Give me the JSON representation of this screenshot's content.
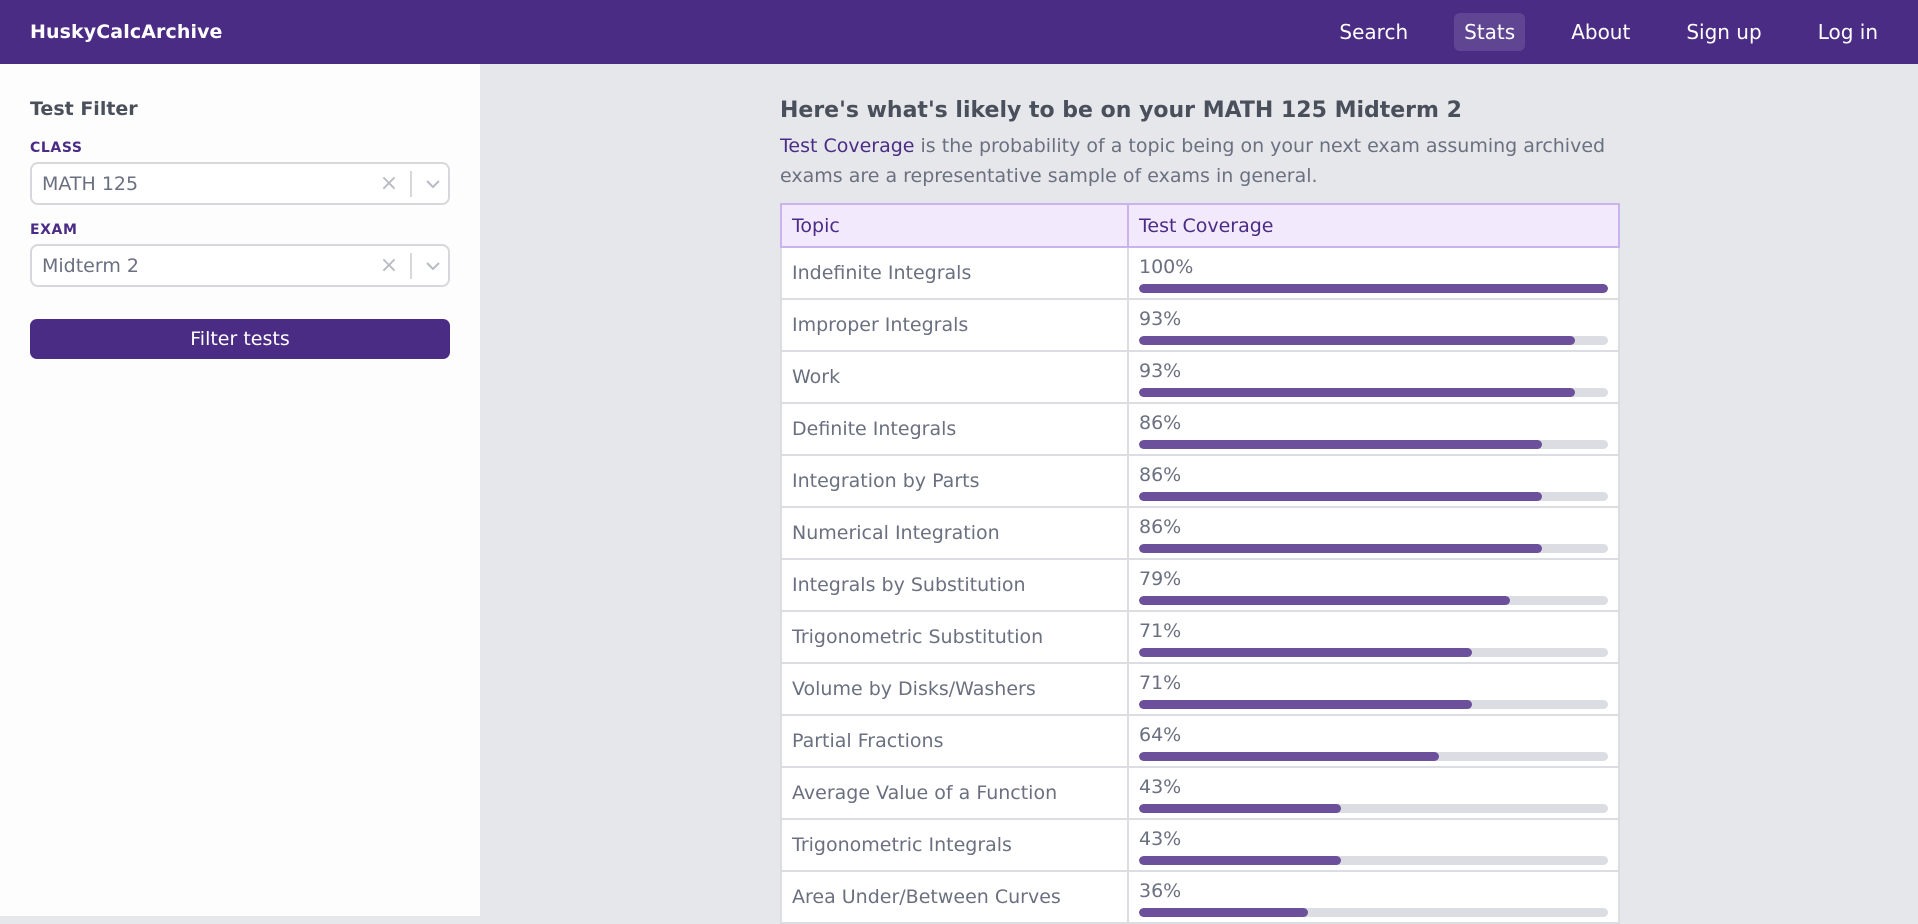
{
  "nav": {
    "brand": "HuskyCalcArchive",
    "links": [
      "Search",
      "Stats",
      "About",
      "Sign up",
      "Log in"
    ],
    "active": "Stats"
  },
  "sidebar": {
    "title": "Test Filter",
    "class_label": "CLASS",
    "class_value": "MATH 125",
    "exam_label": "EXAM",
    "exam_value": "Midterm 2",
    "clear_glyph": "×",
    "button_label": "Filter tests"
  },
  "main": {
    "heading": "Here's what's likely to be on your MATH 125 Midterm 2",
    "desc_highlight": "Test Coverage",
    "desc_rest": " is the probability of a topic being on your next exam assuming archived exams are a representative sample of exams in general.",
    "columns": [
      "Topic",
      "Test Coverage"
    ],
    "rows": [
      {
        "topic": "Indefinite Integrals",
        "pct_text": "100%",
        "pct": 100
      },
      {
        "topic": "Improper Integrals",
        "pct_text": "93%",
        "pct": 93
      },
      {
        "topic": "Work",
        "pct_text": "93%",
        "pct": 93
      },
      {
        "topic": "Definite Integrals",
        "pct_text": "86%",
        "pct": 86
      },
      {
        "topic": "Integration by Parts",
        "pct_text": "86%",
        "pct": 86
      },
      {
        "topic": "Numerical Integration",
        "pct_text": "86%",
        "pct": 86
      },
      {
        "topic": "Integrals by Substitution",
        "pct_text": "79%",
        "pct": 79
      },
      {
        "topic": "Trigonometric Substitution",
        "pct_text": "71%",
        "pct": 71
      },
      {
        "topic": "Volume by Disks/Washers",
        "pct_text": "71%",
        "pct": 71
      },
      {
        "topic": "Partial Fractions",
        "pct_text": "64%",
        "pct": 64
      },
      {
        "topic": "Average Value of a Function",
        "pct_text": "43%",
        "pct": 43
      },
      {
        "topic": "Trigonometric Integrals",
        "pct_text": "43%",
        "pct": 43
      },
      {
        "topic": "Area Under/Between Curves",
        "pct_text": "36%",
        "pct": 36
      }
    ]
  },
  "colors": {
    "brand": "#4b2c85",
    "bar_fill": "#6c509b",
    "bar_track": "#dcdde2",
    "header_bg": "#f3e9fd"
  },
  "icons": {
    "select_chevron": "chevron-down-icon",
    "select_clear": "close-icon"
  }
}
